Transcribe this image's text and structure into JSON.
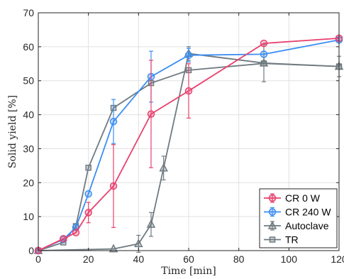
{
  "chart_data": {
    "type": "line",
    "xlabel": "Time [min]",
    "ylabel": "Solid yield [%]",
    "xlim": [
      0,
      120
    ],
    "ylim": [
      0,
      70
    ],
    "xticks": [
      0,
      20,
      40,
      60,
      80,
      100,
      120
    ],
    "yticks": [
      0,
      10,
      20,
      30,
      40,
      50,
      60,
      70
    ],
    "grid": true,
    "legend_position": "bottom-right",
    "series": [
      {
        "name": "CR 0 W",
        "color": "#e8416e",
        "marker": "circle",
        "x": [
          0,
          10,
          15,
          20,
          30,
          45,
          60,
          90,
          120
        ],
        "y": [
          0,
          3.5,
          5.3,
          11.2,
          19.0,
          40.2,
          47.0,
          61.0,
          62.5
        ],
        "err": [
          0,
          0,
          0,
          3.0,
          12.2,
          15.8,
          8.0,
          0,
          0
        ]
      },
      {
        "name": "CR 240 W",
        "color": "#3c8ef2",
        "marker": "circle",
        "x": [
          0,
          10,
          15,
          20,
          30,
          45,
          60,
          90,
          120
        ],
        "y": [
          0,
          3.3,
          6.8,
          16.7,
          38.0,
          51.2,
          57.5,
          57.8,
          62.0
        ],
        "err": [
          0,
          0,
          0,
          0,
          6.5,
          7.5,
          2.0,
          0,
          0
        ]
      },
      {
        "name": "Autoclave",
        "color": "#6f7a80",
        "marker": "triangle",
        "x": [
          0,
          30,
          40,
          45,
          50,
          60,
          90,
          120
        ],
        "y": [
          0,
          0.5,
          2.0,
          7.7,
          24.3,
          58.0,
          55.2,
          54.2
        ],
        "err": [
          0,
          0,
          2.5,
          3.5,
          3.5,
          2.0,
          5.5,
          3.0
        ]
      },
      {
        "name": "TR",
        "color": "#6f7a80",
        "marker": "square",
        "x": [
          0,
          10,
          15,
          20,
          30,
          45,
          60,
          90,
          120
        ],
        "y": [
          0,
          2.4,
          7.2,
          24.4,
          42.0,
          49.3,
          53.1,
          55.1,
          54.2
        ],
        "err": [
          0,
          0,
          0,
          0,
          0,
          0,
          0,
          0,
          0
        ]
      }
    ]
  }
}
